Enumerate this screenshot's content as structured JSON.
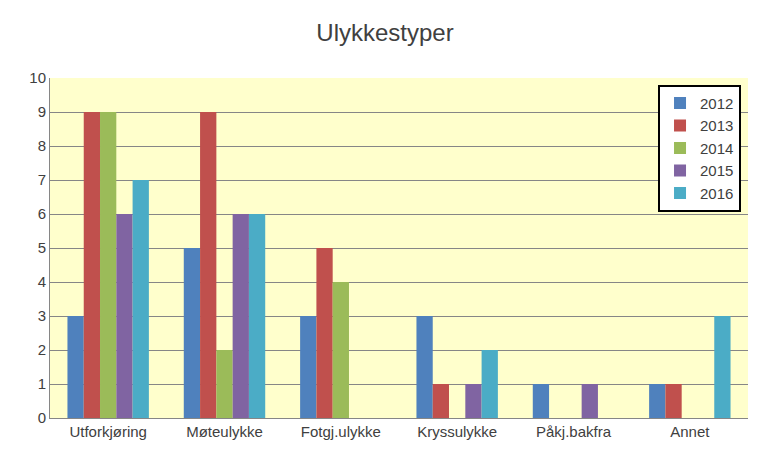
{
  "chart_data": {
    "type": "bar",
    "title": "Ulykkestyper",
    "categories": [
      "Utforkjøring",
      "Møteulykke",
      "Fotgj.ulykke",
      "Kryssulykke",
      "Påkj.bakfra",
      "Annet"
    ],
    "series": [
      {
        "name": "2012",
        "color": "#4F81BD",
        "values": [
          3,
          5,
          3,
          3,
          1,
          1
        ]
      },
      {
        "name": "2013",
        "color": "#C0504D",
        "values": [
          9,
          9,
          5,
          1,
          0,
          1
        ]
      },
      {
        "name": "2014",
        "color": "#9BBB59",
        "values": [
          9,
          2,
          4,
          0,
          0,
          0
        ]
      },
      {
        "name": "2015",
        "color": "#8064A2",
        "values": [
          6,
          6,
          0,
          1,
          1,
          0
        ]
      },
      {
        "name": "2016",
        "color": "#4BACC6",
        "values": [
          7,
          6,
          0,
          2,
          0,
          3
        ]
      }
    ],
    "ylim": [
      0,
      10
    ],
    "yticks": [
      0,
      1,
      2,
      3,
      4,
      5,
      6,
      7,
      8,
      9,
      10
    ],
    "grid": true,
    "legend": "top right"
  }
}
